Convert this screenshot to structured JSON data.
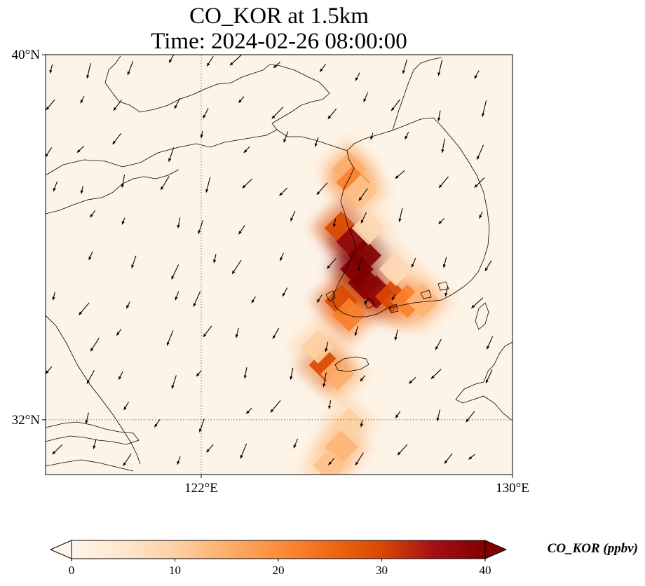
{
  "title": {
    "line1": "CO_KOR at 1.5km",
    "line2": "Time: 2024-02-26 08:00:00"
  },
  "map": {
    "extent": {
      "lon_min": 118,
      "lon_max": 130,
      "lat_min": 30.8,
      "lat_max": 40
    },
    "lat_ticks": [
      {
        "value": 40,
        "label": "40°N"
      },
      {
        "value": 32,
        "label": "32°N"
      }
    ],
    "lon_ticks": [
      {
        "value": 122,
        "label": "122°E"
      },
      {
        "value": 130,
        "label": "130°E"
      }
    ],
    "gridlines": {
      "lon": [
        122
      ],
      "lat": [
        32
      ]
    },
    "background_color": "#fdf4e8",
    "wind_arrows_shown": true
  },
  "colorbar": {
    "title": "CO_KOR (ppbv)",
    "min": 0,
    "max": 40,
    "ticks": [
      0,
      10,
      20,
      30,
      40
    ],
    "extend": "both",
    "colormap": [
      "#fff5eb",
      "#fee6ce",
      "#fdd0a2",
      "#fdae6b",
      "#fd8d3c",
      "#f16913",
      "#d94801",
      "#a50f15",
      "#7f0000"
    ]
  },
  "chart_data": {
    "type": "heatmap",
    "variable": "CO_KOR",
    "units": "ppbv",
    "plume_cells": [
      {
        "lon": 125.8,
        "lat": 37.5,
        "value": 15
      },
      {
        "lon": 125.9,
        "lat": 37.2,
        "value": 22
      },
      {
        "lon": 126.1,
        "lat": 37.0,
        "value": 12
      },
      {
        "lon": 125.6,
        "lat": 36.2,
        "value": 30
      },
      {
        "lon": 125.9,
        "lat": 35.9,
        "value": 38
      },
      {
        "lon": 126.2,
        "lat": 35.6,
        "value": 40
      },
      {
        "lon": 126.0,
        "lat": 35.3,
        "value": 40
      },
      {
        "lon": 126.2,
        "lat": 35.0,
        "value": 40
      },
      {
        "lon": 126.5,
        "lat": 34.8,
        "value": 38
      },
      {
        "lon": 126.9,
        "lat": 34.7,
        "value": 30
      },
      {
        "lon": 127.3,
        "lat": 34.6,
        "value": 22
      },
      {
        "lon": 127.7,
        "lat": 34.6,
        "value": 14
      },
      {
        "lon": 125.6,
        "lat": 34.6,
        "value": 30
      },
      {
        "lon": 125.8,
        "lat": 34.3,
        "value": 22
      },
      {
        "lon": 125.2,
        "lat": 33.2,
        "value": 30
      },
      {
        "lon": 125.5,
        "lat": 33.0,
        "value": 15
      },
      {
        "lon": 125.0,
        "lat": 33.6,
        "value": 10
      },
      {
        "lon": 125.8,
        "lat": 31.9,
        "value": 10
      },
      {
        "lon": 125.6,
        "lat": 31.4,
        "value": 14
      },
      {
        "lon": 125.3,
        "lat": 31.0,
        "value": 12
      },
      {
        "lon": 126.3,
        "lat": 36.2,
        "value": 8
      },
      {
        "lon": 127.0,
        "lat": 35.3,
        "value": 8
      }
    ]
  }
}
